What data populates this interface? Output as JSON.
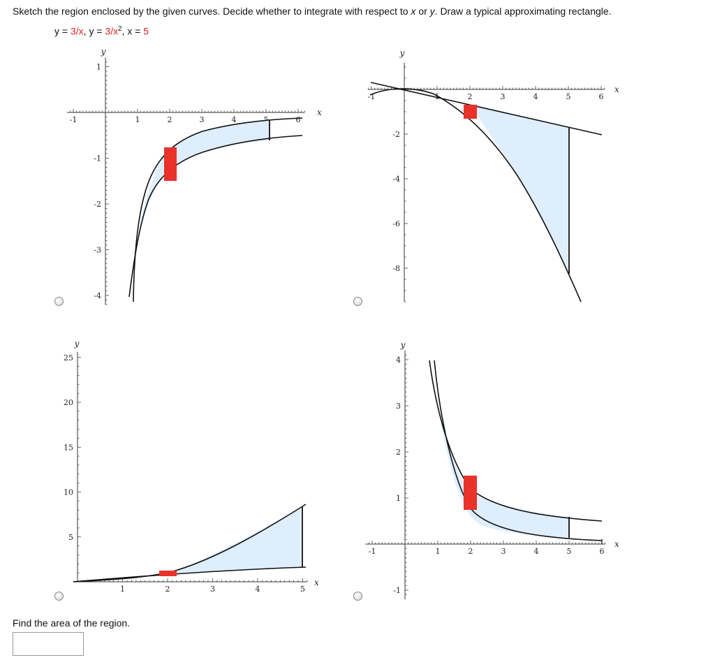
{
  "question": {
    "prompt_a": "Sketch the region enclosed by the given curves. Decide whether to integrate with respect to ",
    "var_x": "x",
    "or_word": " or ",
    "var_y": "y",
    "prompt_b": ". Draw a typical approximating rectangle.",
    "equations": {
      "lhs1": "y = ",
      "rhs1": "3/x",
      "sep1": ",  ",
      "lhs2": "y = ",
      "rhs2_base": "3/x",
      "rhs2_exp": "2",
      "sep2": ",  ",
      "lhs3": "x = ",
      "rhs3": "5"
    }
  },
  "options": [
    {
      "id": "top-left",
      "ylabel": "y",
      "xlabel": "x",
      "xticks": [
        {
          "v": -1,
          "t": "-1"
        },
        {
          "v": 1,
          "t": "1"
        },
        {
          "v": 2,
          "t": "2"
        },
        {
          "v": 3,
          "t": "3"
        },
        {
          "v": 4,
          "t": "4"
        },
        {
          "v": 5,
          "t": "5"
        },
        {
          "v": 6,
          "t": "6"
        }
      ],
      "yticks": [
        {
          "v": 1,
          "t": "1"
        },
        {
          "v": -1,
          "t": "-1"
        },
        {
          "v": -2,
          "t": "-2"
        },
        {
          "v": -3,
          "t": "-3"
        },
        {
          "v": -4,
          "t": "-4"
        }
      ]
    },
    {
      "id": "top-right",
      "ylabel": "y",
      "xlabel": "x",
      "xticks": [
        {
          "v": -1,
          "t": "-1"
        },
        {
          "v": 1,
          "t": "1"
        },
        {
          "v": 2,
          "t": "2"
        },
        {
          "v": 3,
          "t": "3"
        },
        {
          "v": 4,
          "t": "4"
        },
        {
          "v": 5,
          "t": "5"
        },
        {
          "v": 6,
          "t": "6"
        }
      ],
      "yticks": [
        {
          "v": -2,
          "t": "-2"
        },
        {
          "v": -4,
          "t": "-4"
        },
        {
          "v": -6,
          "t": "-6"
        },
        {
          "v": -8,
          "t": "-8"
        }
      ]
    },
    {
      "id": "bottom-left",
      "ylabel": "y",
      "xlabel": "x",
      "xticks": [
        {
          "v": 1,
          "t": "1"
        },
        {
          "v": 2,
          "t": "2"
        },
        {
          "v": 3,
          "t": "3"
        },
        {
          "v": 4,
          "t": "4"
        },
        {
          "v": 5,
          "t": "5"
        }
      ],
      "yticks": [
        {
          "v": 25,
          "t": "25"
        },
        {
          "v": 20,
          "t": "20"
        },
        {
          "v": 15,
          "t": "15"
        },
        {
          "v": 10,
          "t": "10"
        },
        {
          "v": 5,
          "t": "5"
        }
      ]
    },
    {
      "id": "bottom-right",
      "ylabel": "y",
      "xlabel": "x",
      "xticks": [
        {
          "v": -1,
          "t": "-1"
        },
        {
          "v": 1,
          "t": "1"
        },
        {
          "v": 2,
          "t": "2"
        },
        {
          "v": 3,
          "t": "3"
        },
        {
          "v": 4,
          "t": "4"
        },
        {
          "v": 5,
          "t": "5"
        },
        {
          "v": 6,
          "t": "6"
        }
      ],
      "yticks": [
        {
          "v": 4,
          "t": "4"
        },
        {
          "v": 3,
          "t": "3"
        },
        {
          "v": 2,
          "t": "2"
        },
        {
          "v": 1,
          "t": "1"
        },
        {
          "v": -1,
          "t": "-1"
        }
      ]
    }
  ],
  "colors": {
    "region_fill": "#deeefc",
    "rect_fill": "#e8322a",
    "curve": "#111111",
    "equation_red": "#dd2222"
  },
  "area": {
    "label": "Find the area of the region.",
    "value": ""
  }
}
